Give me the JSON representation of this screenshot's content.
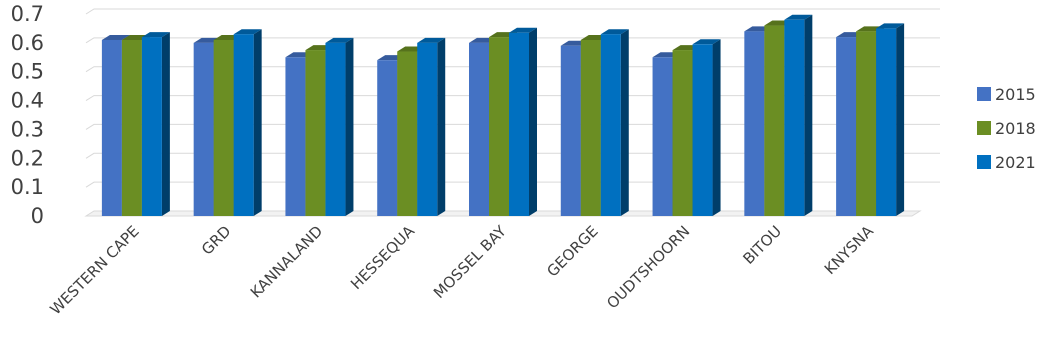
{
  "chart_data": {
    "type": "bar",
    "title": "",
    "xlabel": "",
    "ylabel": "",
    "ylim": [
      0,
      0.7
    ],
    "yticks": [
      "0",
      "0.1",
      "0.2",
      "0.3",
      "0.4",
      "0.5",
      "0.6",
      "0.7"
    ],
    "grid": true,
    "legend_position": "right",
    "three_d": true,
    "categories": [
      "WESTERN CAPE",
      "GRD",
      "KANNALAND",
      "HESSEQUA",
      "MOSSEL BAY",
      "GEORGE",
      "OUDTSHOORN",
      "BITOU",
      "KNYSNA"
    ],
    "series": [
      {
        "name": "2015",
        "color": "#4472c4",
        "values": [
          0.61,
          0.6,
          0.55,
          0.54,
          0.6,
          0.59,
          0.55,
          0.64,
          0.62
        ]
      },
      {
        "name": "2018",
        "color": "#6b8e23",
        "values": [
          0.61,
          0.61,
          0.575,
          0.57,
          0.62,
          0.61,
          0.575,
          0.66,
          0.64
        ]
      },
      {
        "name": "2021",
        "color": "#0070c0",
        "values": [
          0.62,
          0.63,
          0.6,
          0.6,
          0.635,
          0.63,
          0.595,
          0.68,
          0.65
        ]
      }
    ]
  }
}
